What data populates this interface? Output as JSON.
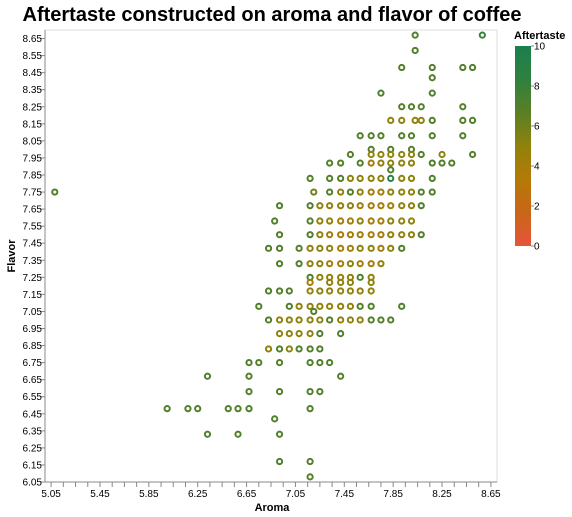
{
  "chart_data": {
    "type": "scatter",
    "title": "Aftertaste constructed on aroma and flavor of coffee",
    "xlabel": "Aroma",
    "ylabel": "Flavor",
    "xlim": [
      5.0,
      8.7
    ],
    "ylim": [
      6.05,
      8.7
    ],
    "x_ticks": [
      5.05,
      5.45,
      5.85,
      6.25,
      6.65,
      7.05,
      7.45,
      7.85,
      8.25,
      8.65
    ],
    "x_tick_labels": [
      "5.05",
      "5.45",
      "5.85",
      "6.25",
      "6.65",
      "7.05",
      "7.45",
      "7.85",
      "8.25",
      "8.65"
    ],
    "y_ticks": [
      6.05,
      6.15,
      6.25,
      6.35,
      6.45,
      6.55,
      6.65,
      6.75,
      6.85,
      6.95,
      7.05,
      7.15,
      7.25,
      7.35,
      7.45,
      7.55,
      7.65,
      7.75,
      7.85,
      7.95,
      8.05,
      8.15,
      8.25,
      8.35,
      8.45,
      8.55,
      8.65
    ],
    "y_tick_labels": [
      "6.05",
      "6.15",
      "6.25",
      "6.35",
      "6.45",
      "6.55",
      "6.65",
      "6.75",
      "6.85",
      "6.95",
      "7.05",
      "7.15",
      "7.25",
      "7.35",
      "7.45",
      "7.55",
      "7.65",
      "7.75",
      "7.85",
      "7.95",
      "8.05",
      "8.15",
      "8.25",
      "8.35",
      "8.45",
      "8.55",
      "8.65"
    ],
    "grid": false,
    "marker": "hollow-circle",
    "legend": {
      "title": "Aftertaste",
      "position": "right",
      "type": "gradient",
      "domain": [
        0,
        10
      ],
      "tick_values": [
        0,
        2,
        4,
        6,
        8,
        10
      ],
      "tick_labels": [
        "0",
        "2",
        "4",
        "6",
        "8",
        "10"
      ],
      "colors": [
        "#e6543a",
        "#c96617",
        "#b47a08",
        "#8f820c",
        "#5b7f25",
        "#2f8040",
        "#1c7f4d"
      ]
    },
    "points": [
      {
        "x": 8.03,
        "y": 8.67,
        "c": 7
      },
      {
        "x": 8.58,
        "y": 8.67,
        "c": 8
      },
      {
        "x": 8.03,
        "y": 8.58,
        "c": 7
      },
      {
        "x": 7.92,
        "y": 8.48,
        "c": 7
      },
      {
        "x": 8.17,
        "y": 8.48,
        "c": 7
      },
      {
        "x": 8.17,
        "y": 8.42,
        "c": 7
      },
      {
        "x": 8.42,
        "y": 8.48,
        "c": 7
      },
      {
        "x": 8.5,
        "y": 8.48,
        "c": 7
      },
      {
        "x": 7.75,
        "y": 8.33,
        "c": 7
      },
      {
        "x": 8.17,
        "y": 8.33,
        "c": 7
      },
      {
        "x": 7.92,
        "y": 8.25,
        "c": 7
      },
      {
        "x": 8.0,
        "y": 8.25,
        "c": 7
      },
      {
        "x": 8.08,
        "y": 8.25,
        "c": 7
      },
      {
        "x": 8.42,
        "y": 8.25,
        "c": 7
      },
      {
        "x": 7.83,
        "y": 8.17,
        "c": 5
      },
      {
        "x": 7.92,
        "y": 8.17,
        "c": 5
      },
      {
        "x": 8.03,
        "y": 8.17,
        "c": 5
      },
      {
        "x": 8.08,
        "y": 8.17,
        "c": 5
      },
      {
        "x": 8.17,
        "y": 8.17,
        "c": 7
      },
      {
        "x": 8.42,
        "y": 8.17,
        "c": 7
      },
      {
        "x": 8.5,
        "y": 8.17,
        "c": 7
      },
      {
        "x": 7.58,
        "y": 8.08,
        "c": 7
      },
      {
        "x": 7.67,
        "y": 8.08,
        "c": 7
      },
      {
        "x": 7.75,
        "y": 8.08,
        "c": 7
      },
      {
        "x": 7.92,
        "y": 8.08,
        "c": 7
      },
      {
        "x": 8.0,
        "y": 8.08,
        "c": 7
      },
      {
        "x": 8.17,
        "y": 8.08,
        "c": 7
      },
      {
        "x": 8.42,
        "y": 8.08,
        "c": 7
      },
      {
        "x": 7.67,
        "y": 8.0,
        "c": 7
      },
      {
        "x": 7.83,
        "y": 8.0,
        "c": 7
      },
      {
        "x": 8.0,
        "y": 8.0,
        "c": 7
      },
      {
        "x": 7.5,
        "y": 7.97,
        "c": 7
      },
      {
        "x": 7.67,
        "y": 7.97,
        "c": 5
      },
      {
        "x": 7.75,
        "y": 7.97,
        "c": 5
      },
      {
        "x": 7.83,
        "y": 7.97,
        "c": 5
      },
      {
        "x": 7.92,
        "y": 7.97,
        "c": 5
      },
      {
        "x": 8.0,
        "y": 7.97,
        "c": 5
      },
      {
        "x": 8.08,
        "y": 7.97,
        "c": 7
      },
      {
        "x": 8.25,
        "y": 7.97,
        "c": 5
      },
      {
        "x": 8.5,
        "y": 7.97,
        "c": 7
      },
      {
        "x": 7.33,
        "y": 7.92,
        "c": 7
      },
      {
        "x": 7.42,
        "y": 7.92,
        "c": 7
      },
      {
        "x": 7.58,
        "y": 7.92,
        "c": 7
      },
      {
        "x": 7.67,
        "y": 7.92,
        "c": 4
      },
      {
        "x": 7.75,
        "y": 7.92,
        "c": 5
      },
      {
        "x": 7.83,
        "y": 7.92,
        "c": 5
      },
      {
        "x": 7.92,
        "y": 7.92,
        "c": 5
      },
      {
        "x": 8.0,
        "y": 7.92,
        "c": 5
      },
      {
        "x": 8.17,
        "y": 7.92,
        "c": 7
      },
      {
        "x": 8.25,
        "y": 7.92,
        "c": 7
      },
      {
        "x": 8.33,
        "y": 7.92,
        "c": 7
      },
      {
        "x": 7.83,
        "y": 7.88,
        "c": 7
      },
      {
        "x": 7.17,
        "y": 7.83,
        "c": 7
      },
      {
        "x": 7.33,
        "y": 7.83,
        "c": 7
      },
      {
        "x": 7.42,
        "y": 7.83,
        "c": 7
      },
      {
        "x": 7.5,
        "y": 7.83,
        "c": 5
      },
      {
        "x": 7.58,
        "y": 7.83,
        "c": 5
      },
      {
        "x": 7.67,
        "y": 7.83,
        "c": 5
      },
      {
        "x": 7.75,
        "y": 7.83,
        "c": 5
      },
      {
        "x": 7.83,
        "y": 7.83,
        "c": 9
      },
      {
        "x": 7.92,
        "y": 7.83,
        "c": 5
      },
      {
        "x": 8.0,
        "y": 7.83,
        "c": 5
      },
      {
        "x": 8.17,
        "y": 7.83,
        "c": 7
      },
      {
        "x": 5.08,
        "y": 7.75,
        "c": 7
      },
      {
        "x": 7.2,
        "y": 7.75,
        "c": 6
      },
      {
        "x": 7.33,
        "y": 7.75,
        "c": 7
      },
      {
        "x": 7.42,
        "y": 7.75,
        "c": 5
      },
      {
        "x": 7.5,
        "y": 7.75,
        "c": 7
      },
      {
        "x": 7.58,
        "y": 7.75,
        "c": 5
      },
      {
        "x": 7.67,
        "y": 7.75,
        "c": 4
      },
      {
        "x": 7.75,
        "y": 7.75,
        "c": 4
      },
      {
        "x": 7.83,
        "y": 7.75,
        "c": 5
      },
      {
        "x": 7.92,
        "y": 7.75,
        "c": 5
      },
      {
        "x": 8.0,
        "y": 7.75,
        "c": 5
      },
      {
        "x": 8.08,
        "y": 7.75,
        "c": 7
      },
      {
        "x": 8.17,
        "y": 7.75,
        "c": 7
      },
      {
        "x": 6.92,
        "y": 7.67,
        "c": 7
      },
      {
        "x": 7.17,
        "y": 7.67,
        "c": 7
      },
      {
        "x": 7.25,
        "y": 7.67,
        "c": 5
      },
      {
        "x": 7.33,
        "y": 7.67,
        "c": 5
      },
      {
        "x": 7.42,
        "y": 7.67,
        "c": 5
      },
      {
        "x": 7.5,
        "y": 7.67,
        "c": 5
      },
      {
        "x": 7.58,
        "y": 7.67,
        "c": 4
      },
      {
        "x": 7.67,
        "y": 7.67,
        "c": 4
      },
      {
        "x": 7.75,
        "y": 7.67,
        "c": 4
      },
      {
        "x": 7.83,
        "y": 7.67,
        "c": 4
      },
      {
        "x": 7.92,
        "y": 7.67,
        "c": 5
      },
      {
        "x": 8.0,
        "y": 7.67,
        "c": 5
      },
      {
        "x": 8.08,
        "y": 7.67,
        "c": 7
      },
      {
        "x": 6.88,
        "y": 7.58,
        "c": 7
      },
      {
        "x": 7.17,
        "y": 7.58,
        "c": 7
      },
      {
        "x": 7.25,
        "y": 7.58,
        "c": 5
      },
      {
        "x": 7.33,
        "y": 7.58,
        "c": 5
      },
      {
        "x": 7.42,
        "y": 7.58,
        "c": 4
      },
      {
        "x": 7.5,
        "y": 7.58,
        "c": 4
      },
      {
        "x": 7.58,
        "y": 7.58,
        "c": 5
      },
      {
        "x": 7.67,
        "y": 7.58,
        "c": 4
      },
      {
        "x": 7.75,
        "y": 7.58,
        "c": 4
      },
      {
        "x": 7.83,
        "y": 7.58,
        "c": 5
      },
      {
        "x": 7.92,
        "y": 7.58,
        "c": 5
      },
      {
        "x": 8.0,
        "y": 7.58,
        "c": 5
      },
      {
        "x": 6.92,
        "y": 7.5,
        "c": 7
      },
      {
        "x": 7.17,
        "y": 7.5,
        "c": 7
      },
      {
        "x": 7.25,
        "y": 7.5,
        "c": 5
      },
      {
        "x": 7.33,
        "y": 7.5,
        "c": 4
      },
      {
        "x": 7.42,
        "y": 7.5,
        "c": 4
      },
      {
        "x": 7.5,
        "y": 7.5,
        "c": 4
      },
      {
        "x": 7.58,
        "y": 7.5,
        "c": 4
      },
      {
        "x": 7.67,
        "y": 7.5,
        "c": 4
      },
      {
        "x": 7.75,
        "y": 7.5,
        "c": 4
      },
      {
        "x": 7.83,
        "y": 7.5,
        "c": 5
      },
      {
        "x": 7.92,
        "y": 7.5,
        "c": 5
      },
      {
        "x": 8.0,
        "y": 7.5,
        "c": 5
      },
      {
        "x": 8.08,
        "y": 7.5,
        "c": 7
      },
      {
        "x": 6.83,
        "y": 7.42,
        "c": 7
      },
      {
        "x": 6.92,
        "y": 7.42,
        "c": 7
      },
      {
        "x": 7.08,
        "y": 7.42,
        "c": 7
      },
      {
        "x": 7.17,
        "y": 7.42,
        "c": 5
      },
      {
        "x": 7.25,
        "y": 7.42,
        "c": 5
      },
      {
        "x": 7.33,
        "y": 7.42,
        "c": 5
      },
      {
        "x": 7.42,
        "y": 7.42,
        "c": 4
      },
      {
        "x": 7.5,
        "y": 7.42,
        "c": 4
      },
      {
        "x": 7.58,
        "y": 7.42,
        "c": 5
      },
      {
        "x": 7.67,
        "y": 7.42,
        "c": 5
      },
      {
        "x": 7.75,
        "y": 7.42,
        "c": 4
      },
      {
        "x": 7.83,
        "y": 7.42,
        "c": 5
      },
      {
        "x": 7.92,
        "y": 7.42,
        "c": 7
      },
      {
        "x": 6.92,
        "y": 7.33,
        "c": 7
      },
      {
        "x": 7.08,
        "y": 7.33,
        "c": 7
      },
      {
        "x": 7.17,
        "y": 7.33,
        "c": 5
      },
      {
        "x": 7.25,
        "y": 7.33,
        "c": 5
      },
      {
        "x": 7.33,
        "y": 7.33,
        "c": 4
      },
      {
        "x": 7.42,
        "y": 7.33,
        "c": 4
      },
      {
        "x": 7.5,
        "y": 7.33,
        "c": 5
      },
      {
        "x": 7.58,
        "y": 7.33,
        "c": 4
      },
      {
        "x": 7.67,
        "y": 7.33,
        "c": 4
      },
      {
        "x": 7.75,
        "y": 7.33,
        "c": 5
      },
      {
        "x": 7.17,
        "y": 7.25,
        "c": 7
      },
      {
        "x": 7.25,
        "y": 7.25,
        "c": 5
      },
      {
        "x": 7.33,
        "y": 7.25,
        "c": 5
      },
      {
        "x": 7.42,
        "y": 7.25,
        "c": 5
      },
      {
        "x": 7.5,
        "y": 7.25,
        "c": 5
      },
      {
        "x": 7.58,
        "y": 7.25,
        "c": 7
      },
      {
        "x": 7.67,
        "y": 7.25,
        "c": 5
      },
      {
        "x": 7.17,
        "y": 7.22,
        "c": 4
      },
      {
        "x": 7.33,
        "y": 7.22,
        "c": 5
      },
      {
        "x": 7.42,
        "y": 7.22,
        "c": 5
      },
      {
        "x": 7.5,
        "y": 7.22,
        "c": 5
      },
      {
        "x": 7.67,
        "y": 7.22,
        "c": 5
      },
      {
        "x": 6.83,
        "y": 7.17,
        "c": 7
      },
      {
        "x": 6.92,
        "y": 7.17,
        "c": 7
      },
      {
        "x": 7.0,
        "y": 7.17,
        "c": 7
      },
      {
        "x": 7.17,
        "y": 7.17,
        "c": 5
      },
      {
        "x": 7.25,
        "y": 7.17,
        "c": 5
      },
      {
        "x": 7.33,
        "y": 7.17,
        "c": 5
      },
      {
        "x": 7.42,
        "y": 7.17,
        "c": 5
      },
      {
        "x": 7.5,
        "y": 7.17,
        "c": 5
      },
      {
        "x": 7.58,
        "y": 7.17,
        "c": 5
      },
      {
        "x": 7.67,
        "y": 7.17,
        "c": 5
      },
      {
        "x": 6.75,
        "y": 7.08,
        "c": 7
      },
      {
        "x": 7.0,
        "y": 7.08,
        "c": 7
      },
      {
        "x": 7.08,
        "y": 7.08,
        "c": 5
      },
      {
        "x": 7.17,
        "y": 7.08,
        "c": 5
      },
      {
        "x": 7.25,
        "y": 7.08,
        "c": 5
      },
      {
        "x": 7.33,
        "y": 7.08,
        "c": 5
      },
      {
        "x": 7.42,
        "y": 7.08,
        "c": 5
      },
      {
        "x": 7.5,
        "y": 7.08,
        "c": 5
      },
      {
        "x": 7.58,
        "y": 7.08,
        "c": 7
      },
      {
        "x": 7.67,
        "y": 7.08,
        "c": 7
      },
      {
        "x": 7.92,
        "y": 7.08,
        "c": 7
      },
      {
        "x": 7.2,
        "y": 7.05,
        "c": 7
      },
      {
        "x": 6.83,
        "y": 7.0,
        "c": 7
      },
      {
        "x": 6.92,
        "y": 7.0,
        "c": 5
      },
      {
        "x": 7.0,
        "y": 7.0,
        "c": 5
      },
      {
        "x": 7.08,
        "y": 7.0,
        "c": 5
      },
      {
        "x": 7.17,
        "y": 7.0,
        "c": 5
      },
      {
        "x": 7.25,
        "y": 7.0,
        "c": 5
      },
      {
        "x": 7.33,
        "y": 7.0,
        "c": 7
      },
      {
        "x": 7.42,
        "y": 7.0,
        "c": 5
      },
      {
        "x": 7.5,
        "y": 7.0,
        "c": 5
      },
      {
        "x": 7.58,
        "y": 7.0,
        "c": 5
      },
      {
        "x": 7.67,
        "y": 7.0,
        "c": 7
      },
      {
        "x": 7.75,
        "y": 7.0,
        "c": 7
      },
      {
        "x": 7.83,
        "y": 7.0,
        "c": 7
      },
      {
        "x": 6.92,
        "y": 6.92,
        "c": 5
      },
      {
        "x": 7.0,
        "y": 6.92,
        "c": 5
      },
      {
        "x": 7.08,
        "y": 6.92,
        "c": 5
      },
      {
        "x": 7.17,
        "y": 6.92,
        "c": 5
      },
      {
        "x": 7.25,
        "y": 6.92,
        "c": 7
      },
      {
        "x": 7.42,
        "y": 6.92,
        "c": 7
      },
      {
        "x": 6.83,
        "y": 6.83,
        "c": 5
      },
      {
        "x": 6.92,
        "y": 6.83,
        "c": 7
      },
      {
        "x": 7.0,
        "y": 6.83,
        "c": 5
      },
      {
        "x": 7.08,
        "y": 6.83,
        "c": 7
      },
      {
        "x": 7.17,
        "y": 6.83,
        "c": 7
      },
      {
        "x": 7.25,
        "y": 6.83,
        "c": 7
      },
      {
        "x": 6.67,
        "y": 6.75,
        "c": 7
      },
      {
        "x": 6.75,
        "y": 6.75,
        "c": 7
      },
      {
        "x": 6.92,
        "y": 6.75,
        "c": 7
      },
      {
        "x": 7.17,
        "y": 6.75,
        "c": 7
      },
      {
        "x": 7.25,
        "y": 6.75,
        "c": 7
      },
      {
        "x": 7.33,
        "y": 6.75,
        "c": 7
      },
      {
        "x": 6.33,
        "y": 6.67,
        "c": 7
      },
      {
        "x": 6.67,
        "y": 6.67,
        "c": 7
      },
      {
        "x": 7.42,
        "y": 6.67,
        "c": 7
      },
      {
        "x": 6.67,
        "y": 6.58,
        "c": 7
      },
      {
        "x": 6.92,
        "y": 6.58,
        "c": 7
      },
      {
        "x": 7.17,
        "y": 6.58,
        "c": 7
      },
      {
        "x": 7.25,
        "y": 6.58,
        "c": 7
      },
      {
        "x": 6.0,
        "y": 6.48,
        "c": 7
      },
      {
        "x": 6.17,
        "y": 6.48,
        "c": 7
      },
      {
        "x": 6.25,
        "y": 6.48,
        "c": 7
      },
      {
        "x": 6.5,
        "y": 6.48,
        "c": 7
      },
      {
        "x": 6.58,
        "y": 6.48,
        "c": 7
      },
      {
        "x": 6.67,
        "y": 6.48,
        "c": 7
      },
      {
        "x": 7.17,
        "y": 6.48,
        "c": 7
      },
      {
        "x": 6.88,
        "y": 6.42,
        "c": 7
      },
      {
        "x": 6.33,
        "y": 6.33,
        "c": 7
      },
      {
        "x": 6.58,
        "y": 6.33,
        "c": 7
      },
      {
        "x": 6.92,
        "y": 6.33,
        "c": 7
      },
      {
        "x": 6.92,
        "y": 6.17,
        "c": 7
      },
      {
        "x": 7.17,
        "y": 6.17,
        "c": 7
      },
      {
        "x": 7.17,
        "y": 6.08,
        "c": 7
      }
    ]
  }
}
